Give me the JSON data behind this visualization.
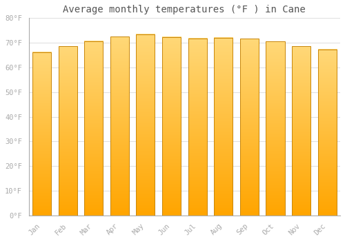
{
  "title": "Average monthly temperatures (°F ) in Cane",
  "months": [
    "Jan",
    "Feb",
    "Mar",
    "Apr",
    "May",
    "Jun",
    "Jul",
    "Aug",
    "Sep",
    "Oct",
    "Nov",
    "Dec"
  ],
  "values": [
    66.2,
    68.5,
    70.7,
    72.5,
    73.4,
    72.3,
    71.8,
    72.0,
    71.7,
    70.5,
    68.5,
    67.3
  ],
  "bar_color_bottom": "#FFA500",
  "bar_color_top": "#FFD878",
  "bar_edge_color": "#C8860A",
  "background_color": "#ffffff",
  "grid_color": "#e0e0e0",
  "ylim": [
    0,
    80
  ],
  "yticks": [
    0,
    10,
    20,
    30,
    40,
    50,
    60,
    70,
    80
  ],
  "ytick_labels": [
    "0°F",
    "10°F",
    "20°F",
    "30°F",
    "40°F",
    "50°F",
    "60°F",
    "70°F",
    "80°F"
  ],
  "title_fontsize": 10,
  "tick_fontsize": 7.5,
  "tick_font_color": "#aaaaaa",
  "title_font_color": "#555555"
}
